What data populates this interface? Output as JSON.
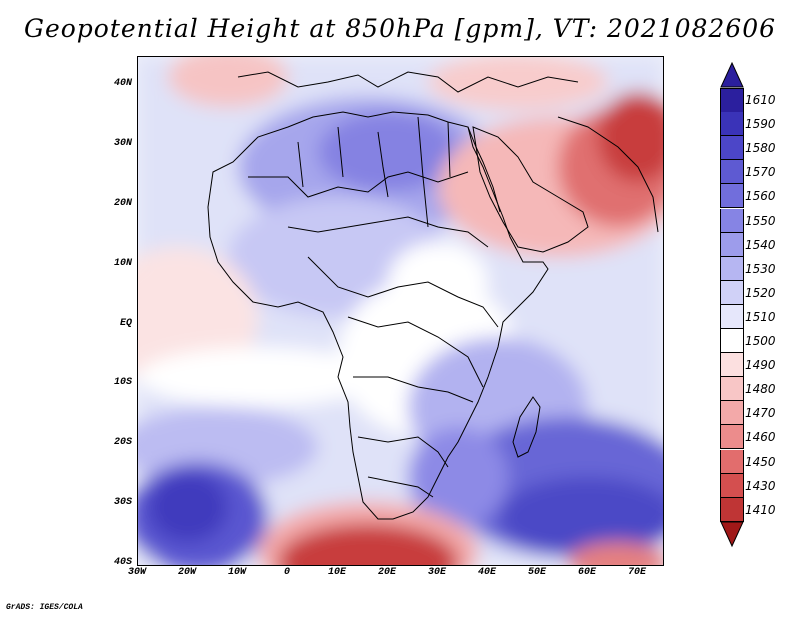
{
  "title": "Geopotential Height at 850hPa [gpm], VT: 2021082606",
  "credit": "GrADS: IGES/COLA",
  "map": {
    "variable": "Geopotential Height at 850hPa",
    "units": "gpm",
    "valid_time": "2021082606",
    "lon_range": [
      -30,
      75
    ],
    "lat_range": [
      -40,
      45
    ],
    "lat_ticks": [
      "40N",
      "30N",
      "20N",
      "10N",
      "EQ",
      "10S",
      "20S",
      "30S",
      "40S"
    ],
    "lon_ticks": [
      "30W",
      "20W",
      "10W",
      "0",
      "10E",
      "20E",
      "30E",
      "40E",
      "50E",
      "60E",
      "70E"
    ]
  },
  "colorbar": {
    "top_color": "#2b1f9e",
    "bottom_color": "#a01818",
    "levels": [
      {
        "label": "1610",
        "color": "#2b1f9e"
      },
      {
        "label": "1590",
        "color": "#3a33b8"
      },
      {
        "label": "1580",
        "color": "#4c46c8"
      },
      {
        "label": "1570",
        "color": "#5e5ad2"
      },
      {
        "label": "1560",
        "color": "#716edc"
      },
      {
        "label": "1550",
        "color": "#8684e4"
      },
      {
        "label": "1540",
        "color": "#9d9ceb"
      },
      {
        "label": "1530",
        "color": "#b6b6f2"
      },
      {
        "label": "1520",
        "color": "#d0d1f7"
      },
      {
        "label": "1510",
        "color": "#e6e7fb"
      },
      {
        "label": "1500",
        "color": "#ffffff"
      },
      {
        "label": "1490",
        "color": "#fce0e0"
      },
      {
        "label": "1480",
        "color": "#f8c6c6"
      },
      {
        "label": "1470",
        "color": "#f3a9a9"
      },
      {
        "label": "1460",
        "color": "#ec8c8c"
      },
      {
        "label": "1450",
        "color": "#e26d6d"
      },
      {
        "label": "1430",
        "color": "#d44f4f"
      },
      {
        "label": "1410",
        "color": "#bf3535"
      }
    ]
  }
}
